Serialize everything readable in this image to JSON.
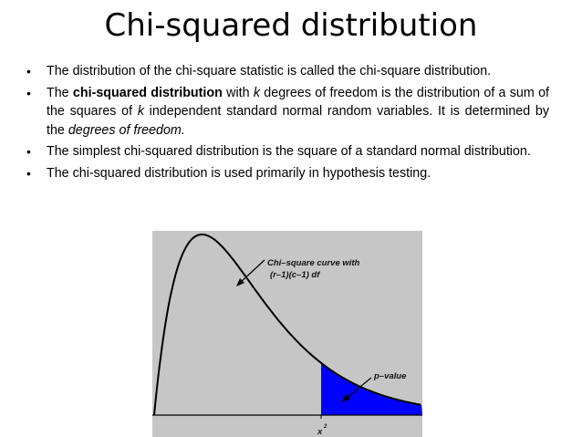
{
  "title": "Chi-squared distribution",
  "bullets": [
    {
      "segments": [
        {
          "text": "The distribution of the chi-square statistic is called the chi-square distribution.",
          "style": "normal"
        }
      ]
    },
    {
      "segments": [
        {
          "text": "The ",
          "style": "normal"
        },
        {
          "text": "chi-squared distribution",
          "style": "bold"
        },
        {
          "text": " with ",
          "style": "normal"
        },
        {
          "text": "k",
          "style": "italic"
        },
        {
          "text": " degrees of freedom is the distribution of a sum of the squares of ",
          "style": "normal"
        },
        {
          "text": "k",
          "style": "italic"
        },
        {
          "text": " independent standard normal random variables. It is determined by the ",
          "style": "normal"
        },
        {
          "text": "degrees of freedom.",
          "style": "italic"
        }
      ]
    },
    {
      "segments": [
        {
          "text": "The simplest chi-squared distribution is the square of a standard normal distribution.",
          "style": "normal"
        }
      ]
    },
    {
      "segments": [
        {
          "text": "The chi-squared distribution is used primarily in hypothesis testing.",
          "style": "normal"
        }
      ]
    }
  ],
  "bullet_symbol": "•",
  "figure": {
    "curve_label_line1": "Chi–square curve with",
    "curve_label_line2": "(r–1)(c–1) df",
    "pvalue_label": "p–value",
    "x_label": "x",
    "x_superscript": "2",
    "colors": {
      "background": "#c6c6c6",
      "curve": "#000000",
      "pvalue_fill": "#0000ff"
    }
  }
}
